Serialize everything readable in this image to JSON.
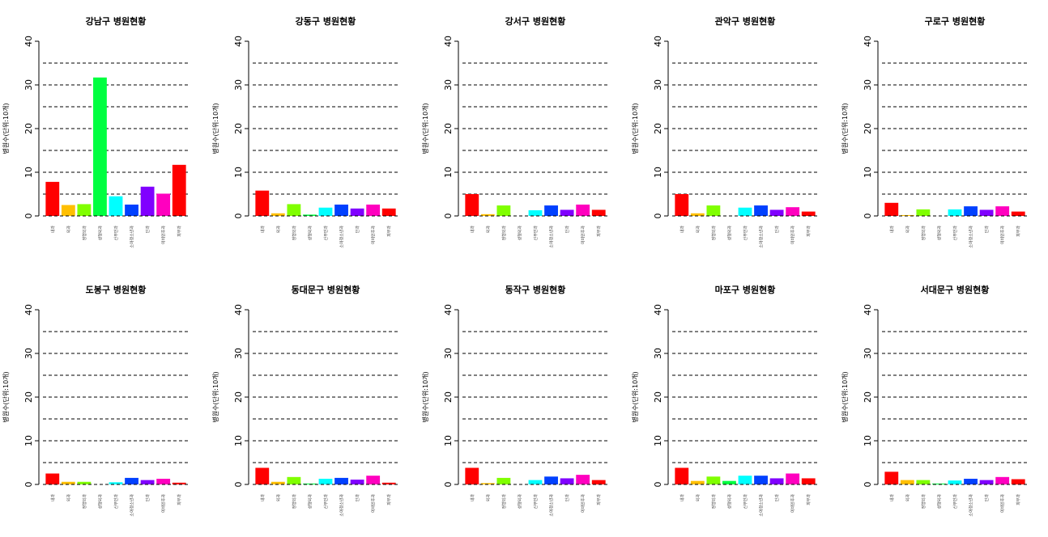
{
  "chart_data": [
    {
      "type": "bar",
      "title": "강남구 병원현황",
      "ylabel": "병원수(단위:10개)",
      "ylim": [
        0,
        40
      ],
      "yticks": [
        0,
        10,
        20,
        30,
        40
      ],
      "gridlines": [
        5,
        10,
        15,
        20,
        25,
        30,
        35
      ],
      "categories": [
        "내과",
        "외과",
        "정형외과",
        "성형외과",
        "산부인과",
        "소아청소년과",
        "안과",
        "이비인후과",
        "피부과"
      ],
      "values": [
        7.8,
        2.5,
        2.7,
        31.7,
        4.5,
        2.6,
        6.7,
        5.1,
        11.7
      ]
    },
    {
      "type": "bar",
      "title": "강동구 병원현황",
      "ylabel": "병원수(단위:10개)",
      "ylim": [
        0,
        40
      ],
      "yticks": [
        0,
        10,
        20,
        30,
        40
      ],
      "gridlines": [
        5,
        10,
        15,
        20,
        25,
        30,
        35
      ],
      "categories": [
        "내과",
        "외과",
        "정형외과",
        "성형외과",
        "산부인과",
        "소아청소년과",
        "안과",
        "이비인후과",
        "피부과"
      ],
      "values": [
        5.8,
        0.6,
        2.7,
        0.3,
        1.9,
        2.6,
        1.7,
        2.6,
        1.7
      ]
    },
    {
      "type": "bar",
      "title": "강서구 병원현황",
      "ylabel": "병원수(단위:10개)",
      "ylim": [
        0,
        40
      ],
      "yticks": [
        0,
        10,
        20,
        30,
        40
      ],
      "gridlines": [
        5,
        10,
        15,
        20,
        25,
        30,
        35
      ],
      "categories": [
        "내과",
        "외과",
        "정형외과",
        "성형외과",
        "산부인과",
        "소아청소년과",
        "안과",
        "이비인후과",
        "피부과"
      ],
      "values": [
        5.0,
        0.4,
        2.4,
        0.0,
        1.3,
        2.4,
        1.4,
        2.6,
        1.4
      ]
    },
    {
      "type": "bar",
      "title": "관악구 병원현황",
      "ylabel": "병원수(단위:10개)",
      "ylim": [
        0,
        40
      ],
      "yticks": [
        0,
        10,
        20,
        30,
        40
      ],
      "gridlines": [
        5,
        10,
        15,
        20,
        25,
        30,
        35
      ],
      "categories": [
        "내과",
        "외과",
        "정형외과",
        "성형외과",
        "산부인과",
        "소아청소년과",
        "안과",
        "이비인후과",
        "피부과"
      ],
      "values": [
        5.0,
        0.6,
        2.4,
        0.0,
        1.9,
        2.4,
        1.4,
        2.0,
        1.0
      ]
    },
    {
      "type": "bar",
      "title": "구로구 병원현황",
      "ylabel": "병원수(단위:10개)",
      "ylim": [
        0,
        40
      ],
      "yticks": [
        0,
        10,
        20,
        30,
        40
      ],
      "gridlines": [
        5,
        10,
        15,
        20,
        25,
        30,
        35
      ],
      "categories": [
        "내과",
        "외과",
        "정형외과",
        "성형외과",
        "산부인과",
        "소아청소년과",
        "안과",
        "이비인후과",
        "피부과"
      ],
      "values": [
        3.0,
        0.2,
        1.5,
        0.0,
        1.5,
        2.2,
        1.4,
        2.2,
        1.0
      ]
    },
    {
      "type": "bar",
      "title": "도봉구 병원현황",
      "ylabel": "병원수(단위:10개)",
      "ylim": [
        0,
        40
      ],
      "yticks": [
        0,
        10,
        20,
        30,
        40
      ],
      "gridlines": [
        5,
        10,
        15,
        20,
        25,
        30,
        35
      ],
      "categories": [
        "내과",
        "외과",
        "정형외과",
        "성형외과",
        "산부인과",
        "소아청소년과",
        "안과",
        "이비인후과",
        "피부과"
      ],
      "values": [
        2.5,
        0.6,
        0.6,
        0.0,
        0.5,
        1.5,
        1.0,
        1.3,
        0.4
      ]
    },
    {
      "type": "bar",
      "title": "동대문구 병원현황",
      "ylabel": "병원수(단위:10개)",
      "ylim": [
        0,
        40
      ],
      "yticks": [
        0,
        10,
        20,
        30,
        40
      ],
      "gridlines": [
        5,
        10,
        15,
        20,
        25,
        30,
        35
      ],
      "categories": [
        "내과",
        "외과",
        "정형외과",
        "성형외과",
        "산부인과",
        "소아청소년과",
        "안과",
        "이비인후과",
        "피부과"
      ],
      "values": [
        3.8,
        0.6,
        1.7,
        0.2,
        1.3,
        1.5,
        1.1,
        2.0,
        0.4
      ]
    },
    {
      "type": "bar",
      "title": "동작구 병원현황",
      "ylabel": "병원수(단위:10개)",
      "ylim": [
        0,
        40
      ],
      "yticks": [
        0,
        10,
        20,
        30,
        40
      ],
      "gridlines": [
        5,
        10,
        15,
        20,
        25,
        30,
        35
      ],
      "categories": [
        "내과",
        "외과",
        "정형외과",
        "성형외과",
        "산부인과",
        "소아청소년과",
        "안과",
        "이비인후과",
        "피부과"
      ],
      "values": [
        3.8,
        0.3,
        1.5,
        0.0,
        1.0,
        1.8,
        1.4,
        2.2,
        1.0
      ]
    },
    {
      "type": "bar",
      "title": "마포구 병원현황",
      "ylabel": "병원수(단위:10개)",
      "ylim": [
        0,
        40
      ],
      "yticks": [
        0,
        10,
        20,
        30,
        40
      ],
      "gridlines": [
        5,
        10,
        15,
        20,
        25,
        30,
        35
      ],
      "categories": [
        "내과",
        "외과",
        "정형외과",
        "성형외과",
        "산부인과",
        "소아청소년과",
        "안과",
        "이비인후과",
        "피부과"
      ],
      "values": [
        3.8,
        0.8,
        1.8,
        0.8,
        2.0,
        2.0,
        1.4,
        2.5,
        1.4
      ]
    },
    {
      "type": "bar",
      "title": "서대문구 병원현황",
      "ylabel": "병원수(단위:10개)",
      "ylim": [
        0,
        40
      ],
      "yticks": [
        0,
        10,
        20,
        30,
        40
      ],
      "gridlines": [
        5,
        10,
        15,
        20,
        25,
        30,
        35
      ],
      "categories": [
        "내과",
        "외과",
        "정형외과",
        "성형외과",
        "산부인과",
        "소아청소년과",
        "안과",
        "이비인후과",
        "피부과"
      ],
      "values": [
        2.9,
        1.0,
        1.0,
        0.2,
        0.9,
        1.3,
        1.0,
        1.7,
        1.2
      ]
    }
  ],
  "bar_colors": [
    "#ff0000",
    "#ffbf00",
    "#80ff00",
    "#00ff40",
    "#00ffff",
    "#0040ff",
    "#8000ff",
    "#ff00bf",
    "#ff0000"
  ]
}
